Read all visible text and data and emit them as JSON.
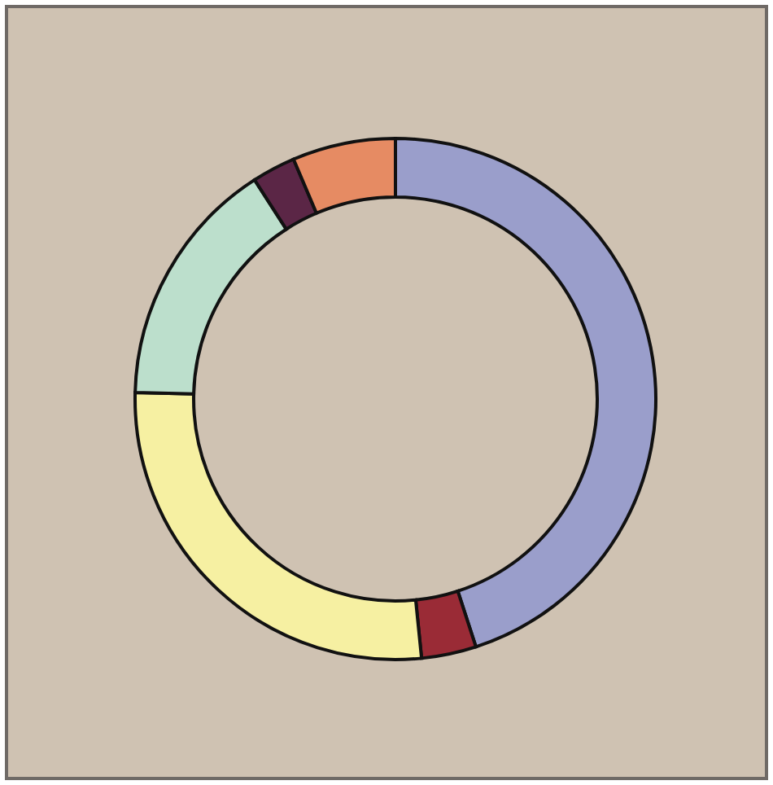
{
  "chart_data": {
    "type": "donut",
    "categories": [
      null,
      null,
      null,
      null,
      null,
      null
    ],
    "values": [
      45,
      3.4,
      27,
      15.5,
      2.7,
      6.4
    ],
    "colors": [
      "#9a9ecb",
      "#9a2b36",
      "#f6f0a2",
      "#bcdfcc",
      "#5b2646",
      "#e68b63"
    ]
  }
}
